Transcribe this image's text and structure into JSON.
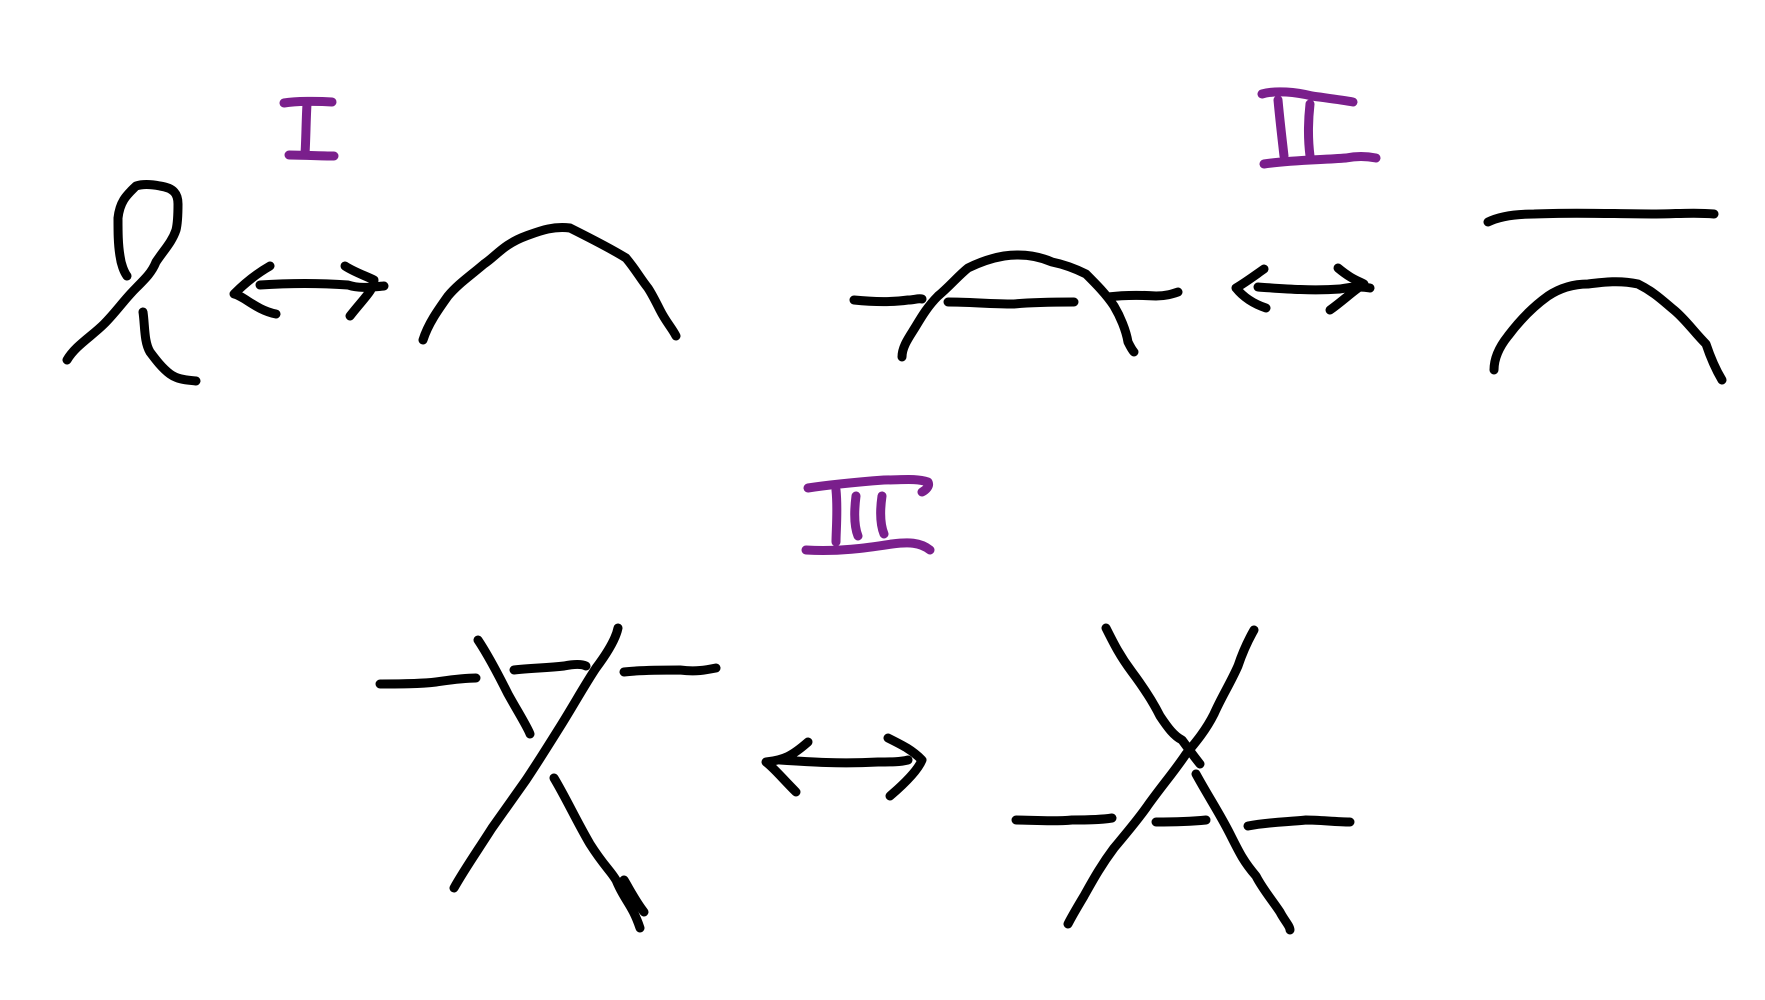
{
  "colors": {
    "ink": "#000000",
    "label": "#7a1f8c",
    "background": "#ffffff"
  },
  "moves": [
    {
      "label": "I",
      "icon": "twist-loop-equivalence"
    },
    {
      "label": "II",
      "icon": "overlap-strands-equivalence"
    },
    {
      "label": "III",
      "icon": "triple-crossing-slide-equivalence"
    }
  ],
  "arrow_icon": "double-headed-arrow-icon"
}
